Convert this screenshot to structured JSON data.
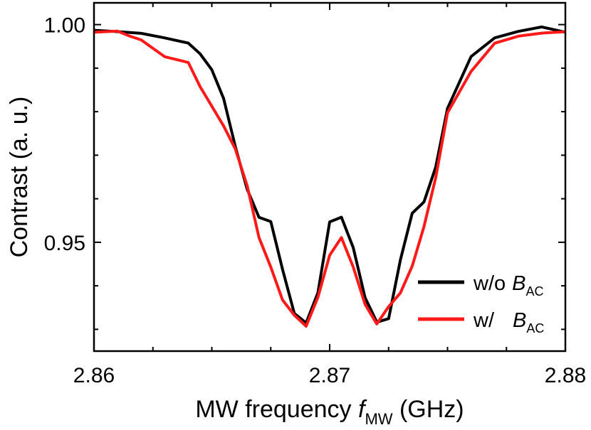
{
  "chart_data": {
    "type": "line",
    "title": "",
    "xlabel_main": "MW frequency ",
    "xlabel_var": "f",
    "xlabel_sub": "MW",
    "xlabel_unit": " (GHz)",
    "ylabel": "Contrast (a. u.)",
    "xlim": [
      2.86,
      2.88
    ],
    "ylim": [
      0.925,
      1.005
    ],
    "x_ticks": [
      2.86,
      2.87,
      2.88
    ],
    "x_tick_labels": [
      "2.86",
      "2.87",
      "2.88"
    ],
    "y_ticks": [
      0.95,
      1.0
    ],
    "y_tick_labels": [
      "0.95",
      "1.00"
    ],
    "legend_position": "bottom-right",
    "series": [
      {
        "name": "w/o B_AC",
        "label_prefix": "w/o",
        "label_var": "B",
        "label_sub": "AC",
        "color": "#000000",
        "x": [
          2.86,
          2.861,
          2.862,
          2.863,
          2.864,
          2.8645,
          2.865,
          2.8655,
          2.866,
          2.8665,
          2.867,
          2.8675,
          2.868,
          2.8685,
          2.869,
          2.8695,
          2.87,
          2.8705,
          2.871,
          2.8715,
          2.872,
          2.8725,
          2.873,
          2.8735,
          2.874,
          2.8745,
          2.875,
          2.876,
          2.877,
          2.878,
          2.879,
          2.88
        ],
        "values": [
          0.9987,
          0.9985,
          0.9978,
          0.9972,
          0.9955,
          0.9935,
          0.9895,
          0.983,
          0.972,
          0.962,
          0.956,
          0.9545,
          0.944,
          0.9335,
          0.9315,
          0.9385,
          0.9545,
          0.956,
          0.9485,
          0.9375,
          0.9315,
          0.9325,
          0.946,
          0.9565,
          0.9595,
          0.967,
          0.981,
          0.9925,
          0.997,
          0.9985,
          0.9993,
          0.9985
        ]
      },
      {
        "name": "w/ B_AC",
        "label_prefix": "w/",
        "label_var": "B",
        "label_sub": "AC",
        "color": "#ff1a1a",
        "x": [
          2.86,
          2.861,
          2.8615,
          2.862,
          2.863,
          2.864,
          2.8645,
          2.865,
          2.8655,
          2.866,
          2.8665,
          2.867,
          2.8675,
          2.868,
          2.8685,
          2.869,
          2.8695,
          2.87,
          2.8705,
          2.871,
          2.8715,
          2.872,
          2.8725,
          2.873,
          2.8735,
          2.874,
          2.8745,
          2.875,
          2.876,
          2.877,
          2.878,
          2.879,
          2.88
        ],
        "values": [
          0.9985,
          0.9983,
          0.9975,
          0.9965,
          0.9925,
          0.9915,
          0.9855,
          0.9815,
          0.9765,
          0.9715,
          0.963,
          0.951,
          0.9445,
          0.9365,
          0.9335,
          0.9305,
          0.9375,
          0.947,
          0.951,
          0.9445,
          0.9355,
          0.9315,
          0.935,
          0.9385,
          0.9445,
          0.9535,
          0.965,
          0.9795,
          0.9895,
          0.9955,
          0.9975,
          0.998,
          0.9983
        ]
      }
    ]
  }
}
